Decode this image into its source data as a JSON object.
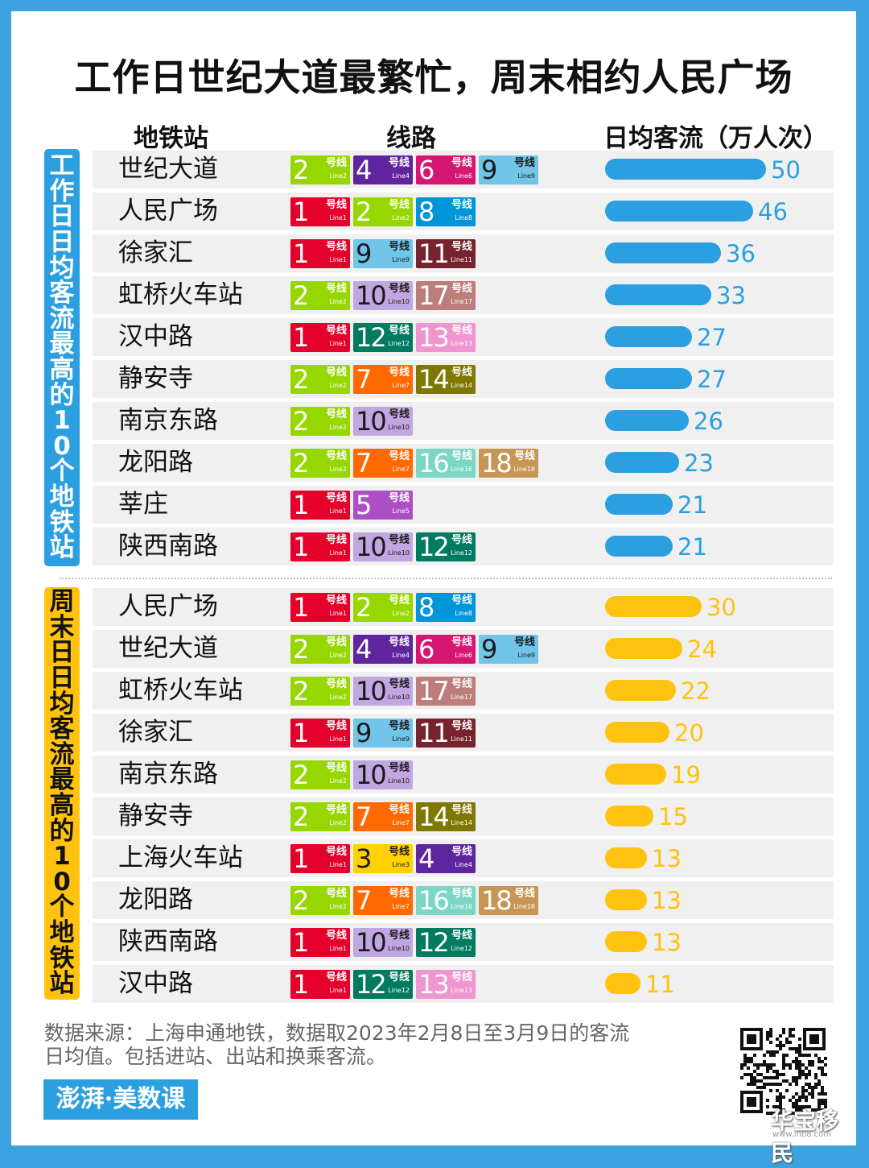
{
  "title": "工作日世纪大道最繁忙，周末相约人民广场",
  "headers": {
    "station": "地铁站",
    "lines": "线路",
    "flow": "日均客流（万人次）"
  },
  "side_labels": {
    "weekday": "工作日日均客流最高的10个地铁站",
    "weekend": "周末日日均客流最高的10个地铁站"
  },
  "line_badge_text": {
    "hx": "号线",
    "en_prefix": "Line"
  },
  "line_colors": {
    "1": "#e4002b",
    "2": "#97d700",
    "3": "#ffd100",
    "4": "#5f259f",
    "5": "#ac4fc6",
    "6": "#d71671",
    "7": "#ff6900",
    "8": "#0094d8",
    "9": "#71c5e8",
    "10": "#c1a7e2",
    "11": "#76232f",
    "12": "#007b5f",
    "13": "#ef95cf",
    "14": "#7f7800",
    "16": "#7bd6c4",
    "17": "#bb7e7a",
    "18": "#c69655"
  },
  "line_text_dark": [
    "3",
    "9",
    "10"
  ],
  "chart_data": [
    {
      "type": "bar",
      "name": "工作日日均客流最高的10个地铁站",
      "unit": "万人次",
      "categories": [
        "世纪大道",
        "人民广场",
        "徐家汇",
        "虹桥火车站",
        "汉中路",
        "静安寺",
        "南京东路",
        "龙阳路",
        "莘庄",
        "陕西南路"
      ],
      "values": [
        50,
        46,
        36,
        33,
        27,
        27,
        26,
        23,
        21,
        21
      ],
      "lines": [
        [
          "2",
          "4",
          "6",
          "9"
        ],
        [
          "1",
          "2",
          "8"
        ],
        [
          "1",
          "9",
          "11"
        ],
        [
          "2",
          "10",
          "17"
        ],
        [
          "1",
          "12",
          "13"
        ],
        [
          "2",
          "7",
          "14"
        ],
        [
          "2",
          "10"
        ],
        [
          "2",
          "7",
          "16",
          "18"
        ],
        [
          "1",
          "5"
        ],
        [
          "1",
          "10",
          "12"
        ]
      ],
      "color": "#2c9fe0"
    },
    {
      "type": "bar",
      "name": "周末日日均客流最高的10个地铁站",
      "unit": "万人次",
      "categories": [
        "人民广场",
        "世纪大道",
        "虹桥火车站",
        "徐家汇",
        "南京东路",
        "静安寺",
        "上海火车站",
        "龙阳路",
        "陕西南路",
        "汉中路"
      ],
      "values": [
        30,
        24,
        22,
        20,
        19,
        15,
        13,
        13,
        13,
        11
      ],
      "lines": [
        [
          "1",
          "2",
          "8"
        ],
        [
          "2",
          "4",
          "6",
          "9"
        ],
        [
          "2",
          "10",
          "17"
        ],
        [
          "1",
          "9",
          "11"
        ],
        [
          "2",
          "10"
        ],
        [
          "2",
          "7",
          "14"
        ],
        [
          "1",
          "3",
          "4"
        ],
        [
          "2",
          "7",
          "16",
          "18"
        ],
        [
          "1",
          "10",
          "12"
        ],
        [
          "1",
          "12",
          "13"
        ]
      ],
      "color": "#ffc20e"
    }
  ],
  "source": {
    "line1": "数据来源：上海申通地铁，数据取2023年2月8日至3月9日的客流",
    "line2": "日均值。包括进站、出站和换乘客流。"
  },
  "logo_text": "澎湃·美数课",
  "watermark": {
    "text": "华宝移民",
    "url": "www.ihb8.com"
  }
}
